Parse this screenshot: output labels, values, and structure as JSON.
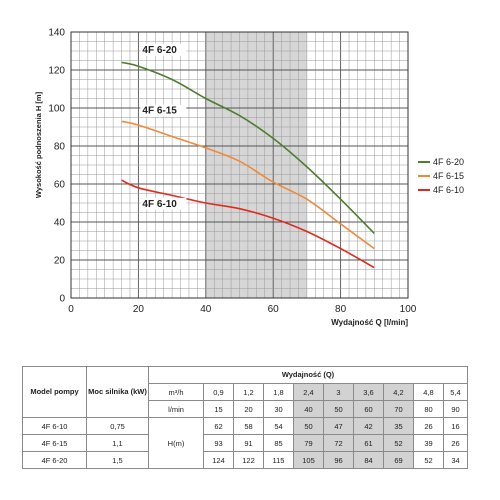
{
  "chart_data": {
    "type": "line",
    "xlabel": "Wydajność Q [l/min]",
    "ylabel": "Wysokość podnoszenia H [m]",
    "xlim": [
      0,
      100
    ],
    "ylim": [
      0,
      140
    ],
    "x_ticks": [
      "0",
      "20",
      "40",
      "60",
      "80",
      "100"
    ],
    "y_ticks": [
      "0",
      "20",
      "40",
      "60",
      "80",
      "100",
      "120",
      "140"
    ],
    "grid": true,
    "legend_position": "right",
    "shaded_band": [
      40,
      70
    ],
    "series": [
      {
        "name": "4F 6-20",
        "color": "#4e7d32",
        "points": [
          [
            15,
            124
          ],
          [
            20,
            122
          ],
          [
            30,
            115
          ],
          [
            40,
            105
          ],
          [
            50,
            96
          ],
          [
            60,
            84
          ],
          [
            70,
            69
          ],
          [
            80,
            52
          ],
          [
            90,
            34
          ]
        ]
      },
      {
        "name": "4F 6-15",
        "color": "#ee8a3c",
        "points": [
          [
            15,
            93
          ],
          [
            20,
            91
          ],
          [
            30,
            85
          ],
          [
            40,
            79
          ],
          [
            50,
            72
          ],
          [
            60,
            61
          ],
          [
            70,
            52
          ],
          [
            80,
            39
          ],
          [
            90,
            26
          ]
        ]
      },
      {
        "name": "4F 6-10",
        "color": "#e02a1e",
        "points": [
          [
            15,
            62
          ],
          [
            20,
            58
          ],
          [
            30,
            54
          ],
          [
            40,
            50
          ],
          [
            50,
            47
          ],
          [
            60,
            42
          ],
          [
            70,
            35
          ],
          [
            80,
            26
          ],
          [
            90,
            16
          ]
        ]
      }
    ]
  },
  "table": {
    "col_model": "Model pompy",
    "col_power": "Moc silnika (kW)",
    "col_flow": "Wydajność (Q)",
    "unit_m3h": "m³/h",
    "unit_lmin": "l/min",
    "unit_h": "H(m)",
    "m3h_values": [
      "0,9",
      "1,2",
      "1,8",
      "2,4",
      "3",
      "3,6",
      "4,2",
      "4,8",
      "5,4"
    ],
    "lmin_values": [
      "15",
      "20",
      "30",
      "40",
      "50",
      "60",
      "70",
      "80",
      "90"
    ],
    "rows": [
      {
        "model": "4F 6-10",
        "power": "0,75",
        "values": [
          "62",
          "58",
          "54",
          "50",
          "47",
          "42",
          "35",
          "26",
          "16"
        ]
      },
      {
        "model": "4F 6-15",
        "power": "1,1",
        "values": [
          "93",
          "91",
          "85",
          "79",
          "72",
          "61",
          "52",
          "39",
          "26"
        ]
      },
      {
        "model": "4F 6-20",
        "power": "1,5",
        "values": [
          "124",
          "122",
          "115",
          "105",
          "96",
          "84",
          "69",
          "52",
          "34"
        ]
      }
    ]
  }
}
